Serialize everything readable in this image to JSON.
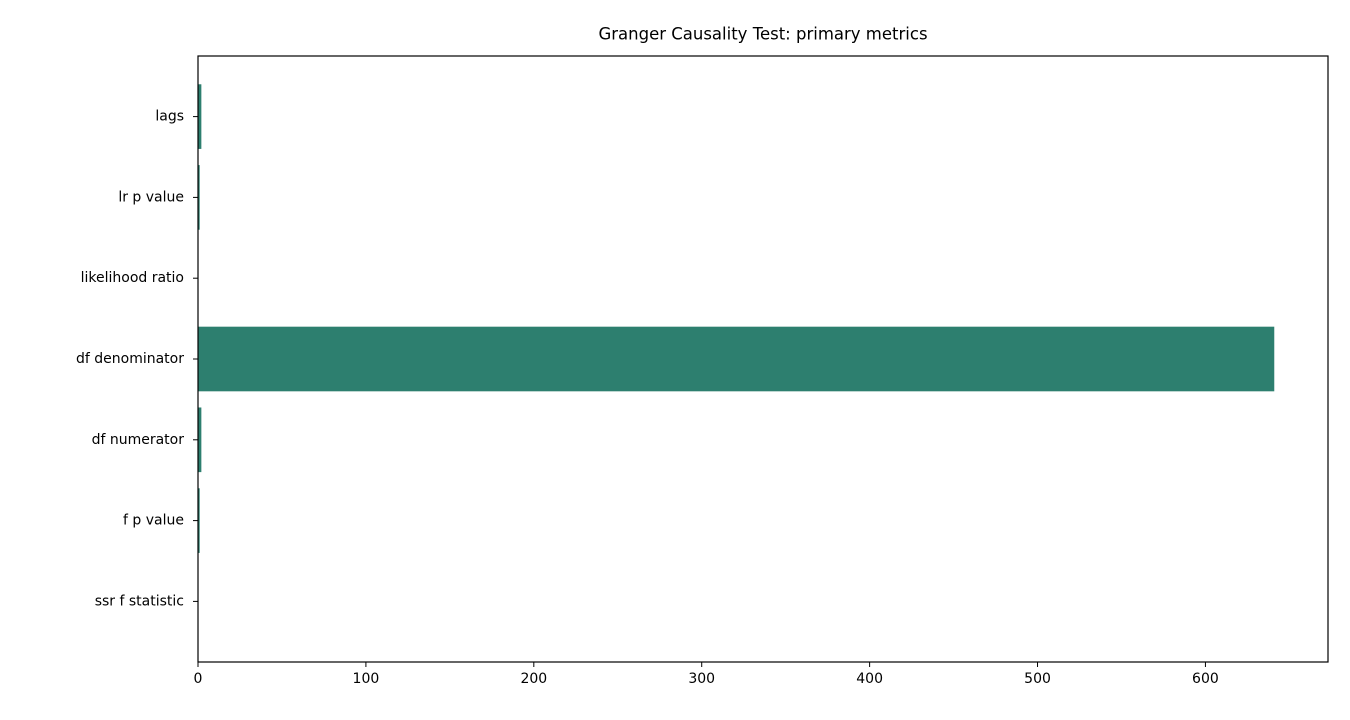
{
  "chart_data": {
    "type": "barh",
    "title": "Granger Causality Test: primary metrics",
    "categories": [
      "lags",
      "lr p value",
      "likelihood ratio",
      "df denominator",
      "df numerator",
      "f p value",
      "ssr f statistic"
    ],
    "values": [
      2,
      1,
      0,
      641,
      2,
      1,
      0
    ],
    "color": "#2d7f6f",
    "xlim": [
      0,
      673
    ],
    "xticks": [
      0,
      100,
      200,
      300,
      400,
      500,
      600
    ],
    "grid": false
  }
}
